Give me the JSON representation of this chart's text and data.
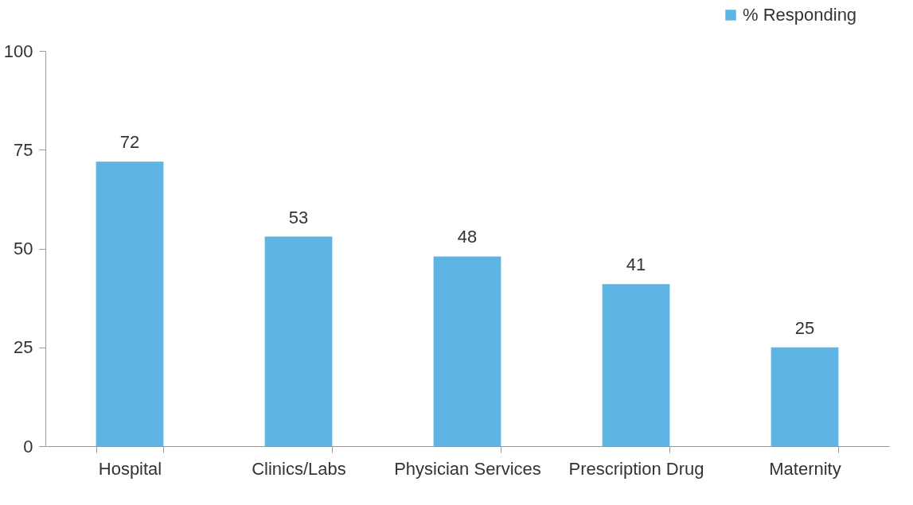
{
  "chart_data": {
    "type": "bar",
    "categories": [
      "Hospital",
      "Clinics/Labs",
      "Physician Services",
      "Prescription Drug",
      "Maternity"
    ],
    "series": [
      {
        "name": "% Responding",
        "color": "#5eb5e4",
        "values": [
          72,
          53,
          48,
          41,
          25
        ]
      }
    ],
    "ylim": [
      0,
      100
    ],
    "yticks": [
      0,
      25,
      50,
      75,
      100
    ],
    "legend": "top right",
    "data_labels": true
  }
}
